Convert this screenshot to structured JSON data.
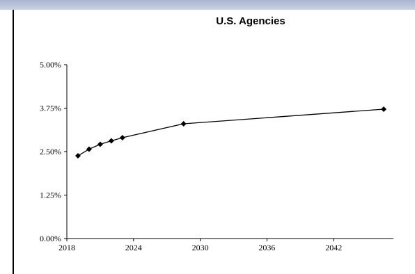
{
  "chart_data": {
    "type": "line",
    "title": "U.S. Agencies",
    "xlabel": "",
    "ylabel": "",
    "xlim": [
      2018,
      2048
    ],
    "ylim": [
      0,
      5
    ],
    "x_ticks": [
      "2018",
      "2024",
      "2030",
      "2036",
      "2042"
    ],
    "y_ticks": [
      "0.00%",
      "1.25%",
      "2.50%",
      "3.75%",
      "5.00%"
    ],
    "grid": false,
    "legend": "none",
    "series": [
      {
        "marker": "diamond",
        "color": "#000000",
        "x": [
          2019.0,
          2020.0,
          2021.0,
          2022.0,
          2023.0,
          2028.5,
          2046.5
        ],
        "y": [
          2.38,
          2.57,
          2.71,
          2.81,
          2.9,
          3.3,
          3.72
        ]
      }
    ]
  }
}
